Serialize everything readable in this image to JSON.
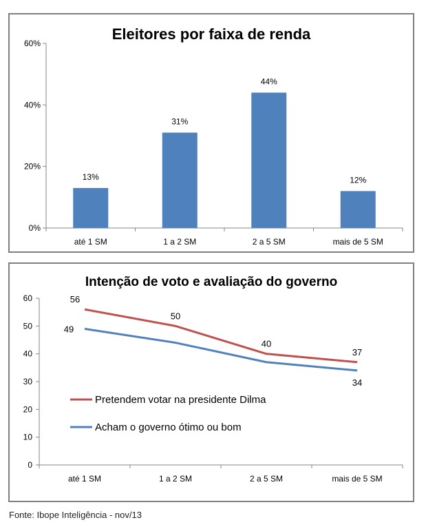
{
  "chart_data": [
    {
      "type": "bar",
      "title": "Eleitores por faixa de renda",
      "categories": [
        "até 1 SM",
        "1 a 2 SM",
        "2 a 5 SM",
        "mais de 5 SM"
      ],
      "values": [
        13,
        31,
        44,
        12
      ],
      "value_labels": [
        "13%",
        "31%",
        "44%",
        "12%"
      ],
      "ylim": [
        0,
        60
      ],
      "yticks": [
        0,
        20,
        40,
        60
      ],
      "ytick_labels": [
        "0%",
        "20%",
        "40%",
        "60%"
      ],
      "color": "#4f81bd",
      "grid": false,
      "xlabel": "",
      "ylabel": ""
    },
    {
      "type": "line",
      "title": "Intenção de voto e avaliação do governo",
      "categories": [
        "até 1 SM",
        "1 a 2 SM",
        "2 a 5 SM",
        "mais de 5 SM"
      ],
      "ylim": [
        0,
        60
      ],
      "yticks": [
        0,
        10,
        20,
        30,
        40,
        50,
        60
      ],
      "ytick_labels": [
        "0",
        "10",
        "20",
        "30",
        "40",
        "50",
        "60"
      ],
      "series": [
        {
          "name": "Pretendem votar na presidente Dilma",
          "values": [
            56,
            50,
            40,
            37
          ],
          "value_labels": [
            "56",
            "50",
            "40",
            "37"
          ],
          "color": "#c0504d"
        },
        {
          "name": "Acham o governo ótimo ou bom",
          "values": [
            49,
            44,
            37,
            34
          ],
          "value_labels": [
            "49",
            "",
            "",
            "34"
          ],
          "color": "#4f81bd"
        }
      ],
      "legend_position": "lower-left",
      "grid": false,
      "xlabel": "",
      "ylabel": ""
    }
  ],
  "footer": {
    "source": "Fonte: Ibope Inteligência - nov/13"
  }
}
